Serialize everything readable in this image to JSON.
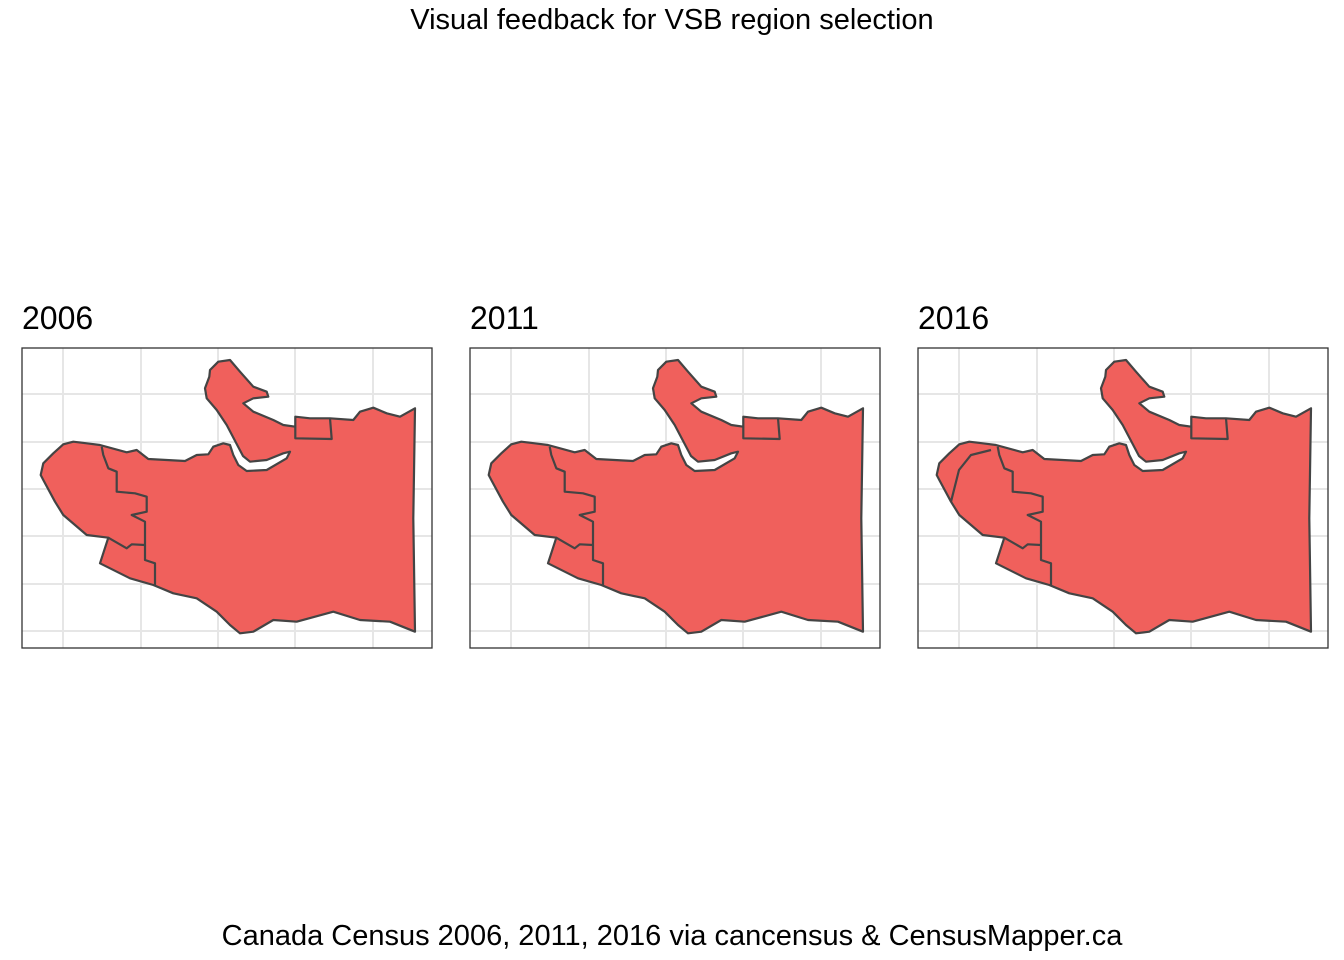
{
  "title": "Visual feedback for VSB region selection",
  "caption": "Canada Census 2006, 2011, 2016 via cancensus & CensusMapper.ca",
  "colors": {
    "fill": "#F0605C",
    "stroke": "#444444",
    "grid": "#E6E6E6",
    "panel_border": "#333333"
  },
  "chart_data": {
    "type": "map",
    "title": "Visual feedback for VSB region selection",
    "facets": [
      {
        "label": "2006",
        "selected": true
      },
      {
        "label": "2011",
        "selected": true
      },
      {
        "label": "2016",
        "selected": true
      }
    ],
    "grid": true,
    "axes_labels_visible": false
  }
}
